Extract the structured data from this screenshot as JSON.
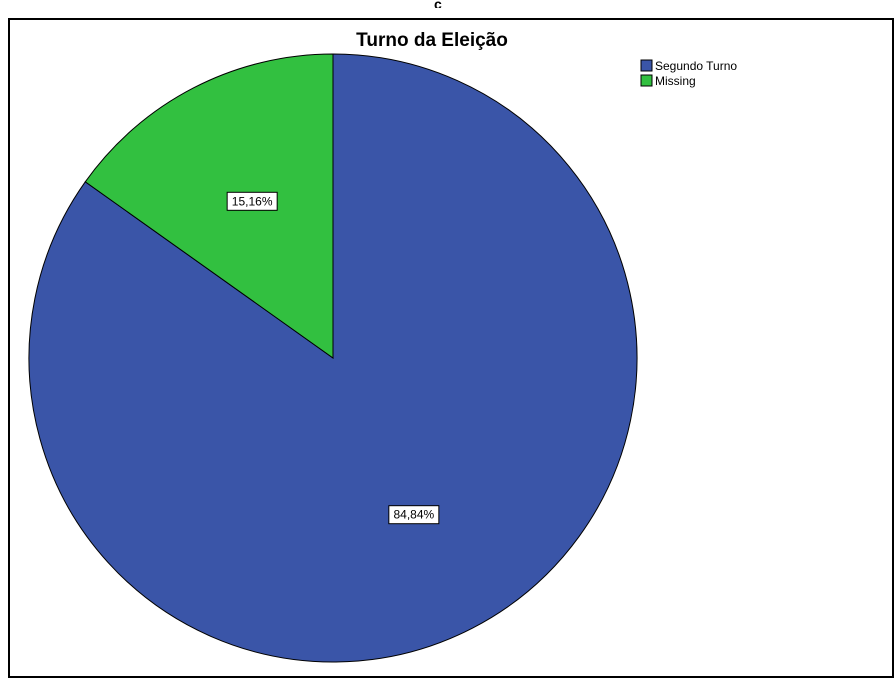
{
  "chart_data": {
    "type": "pie",
    "title": "Turno da Eleição",
    "categories": [
      "Segundo Turno",
      "Missing"
    ],
    "values": [
      84.84,
      15.16
    ],
    "data_labels": [
      "84,84%",
      "15,16%"
    ],
    "colors": [
      "#3a55a8",
      "#32c040"
    ],
    "legend": {
      "placement": "top-right",
      "entries": [
        "Segundo Turno",
        "Missing"
      ]
    }
  }
}
